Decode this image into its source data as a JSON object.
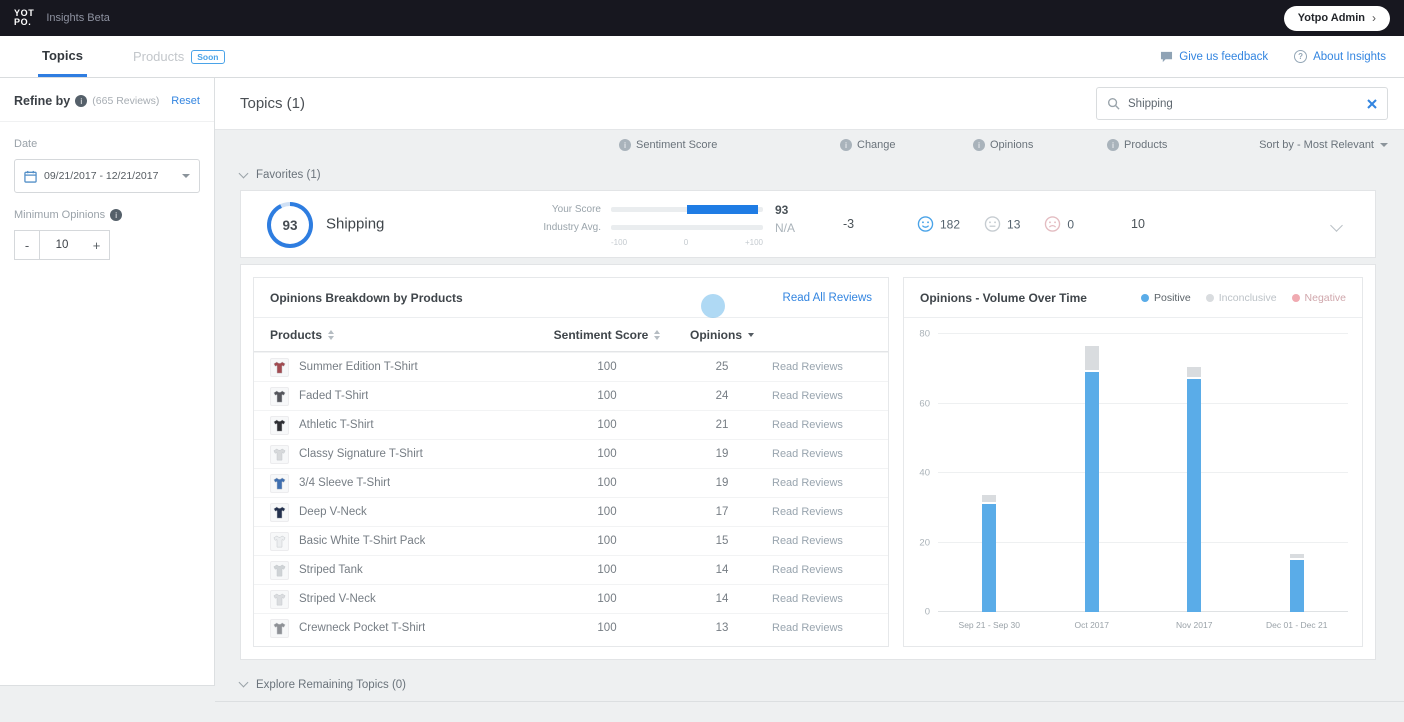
{
  "topbar": {
    "logo_line1": "YOT",
    "logo_line2": "PO.",
    "app_title": "Insights Beta",
    "admin_label": "Yotpo Admin",
    "admin_chevron": "›"
  },
  "tabs": {
    "topics_label": "Topics",
    "products_label": "Products",
    "soon_badge": "Soon",
    "feedback_link": "Give us feedback",
    "about_link": "About Insights"
  },
  "sidebar": {
    "refine_label": "Refine by",
    "reviews_count": "(665 Reviews)",
    "reset_label": "Reset",
    "date_label": "Date",
    "date_value": "09/21/2017 - 12/21/2017",
    "min_opinions_label": "Minimum Opinions",
    "stepper_minus": "-",
    "stepper_value": "10",
    "stepper_plus": "+"
  },
  "header": {
    "title": "Topics (1)",
    "search_value": "Shipping"
  },
  "columns": {
    "sentiment": "Sentiment Score",
    "change": "Change",
    "opinions": "Opinions",
    "products": "Products",
    "sort_label": "Sort by - Most Relevant"
  },
  "sections": {
    "favorites": "Favorites (1)",
    "explore": "Explore Remaining Topics (0)"
  },
  "topic": {
    "score": "93",
    "name": "Shipping",
    "your_score_label": "Your Score",
    "industry_label": "Industry Avg.",
    "your_score_value": "93",
    "industry_value": "N/A",
    "scale_min": "-100",
    "scale_mid": "0",
    "scale_max": "+100",
    "change": "-3",
    "positive_count": "182",
    "neutral_count": "13",
    "negative_count": "0",
    "products_count": "10"
  },
  "breakdown": {
    "title": "Opinions Breakdown by Products",
    "read_all_label": "Read All Reviews",
    "col_products": "Products",
    "col_score": "Sentiment Score",
    "col_opinions": "Opinions",
    "read_reviews_label": "Read Reviews",
    "rows": [
      {
        "name": "Summer Edition T-Shirt",
        "score": "100",
        "opinions": "25",
        "thumb_color": "#a14a50"
      },
      {
        "name": "Faded T-Shirt",
        "score": "100",
        "opinions": "24",
        "thumb_color": "#55565c"
      },
      {
        "name": "Athletic T-Shirt",
        "score": "100",
        "opinions": "21",
        "thumb_color": "#2e2e33"
      },
      {
        "name": "Classy Signature T-Shirt",
        "score": "100",
        "opinions": "19",
        "thumb_color": "#d7d9db"
      },
      {
        "name": "3/4 Sleeve T-Shirt",
        "score": "100",
        "opinions": "19",
        "thumb_color": "#3f6fb0"
      },
      {
        "name": "Deep V-Neck",
        "score": "100",
        "opinions": "17",
        "thumb_color": "#23304d"
      },
      {
        "name": "Basic White T-Shirt Pack",
        "score": "100",
        "opinions": "15",
        "thumb_color": "#eceef0"
      },
      {
        "name": "Striped Tank",
        "score": "100",
        "opinions": "14",
        "thumb_color": "#cfd3d6"
      },
      {
        "name": "Striped V-Neck",
        "score": "100",
        "opinions": "14",
        "thumb_color": "#dadcdf"
      },
      {
        "name": "Crewneck Pocket T-Shirt",
        "score": "100",
        "opinions": "13",
        "thumb_color": "#8e9196"
      }
    ]
  },
  "chart_data": {
    "type": "bar",
    "title": "Opinions - Volume Over Time",
    "stacked": true,
    "categories": [
      "Sep 21 - Sep 30",
      "Oct 2017",
      "Nov 2017",
      "Dec 01 - Dec 21"
    ],
    "series": [
      {
        "name": "Positive",
        "color": "#5aace8",
        "values": [
          31,
          69,
          67,
          15
        ]
      },
      {
        "name": "Inconclusive",
        "color": "#d9dcdf",
        "values": [
          2,
          7,
          3,
          1
        ]
      },
      {
        "name": "Negative",
        "color": "#f0aab1",
        "values": [
          0,
          0,
          0,
          0
        ]
      }
    ],
    "ylim": [
      0,
      80
    ],
    "yticks": [
      0,
      20,
      40,
      60,
      80
    ],
    "legend_position": "top-right",
    "grid": true
  },
  "colors": {
    "accent_blue": "#3385e0",
    "score_blue": "#1f7ce4",
    "positive_icon_blue": "#4aa3e8",
    "neutral_icon_gray": "#c6ccd1",
    "negative_icon_pink": "#e3bcc1"
  }
}
